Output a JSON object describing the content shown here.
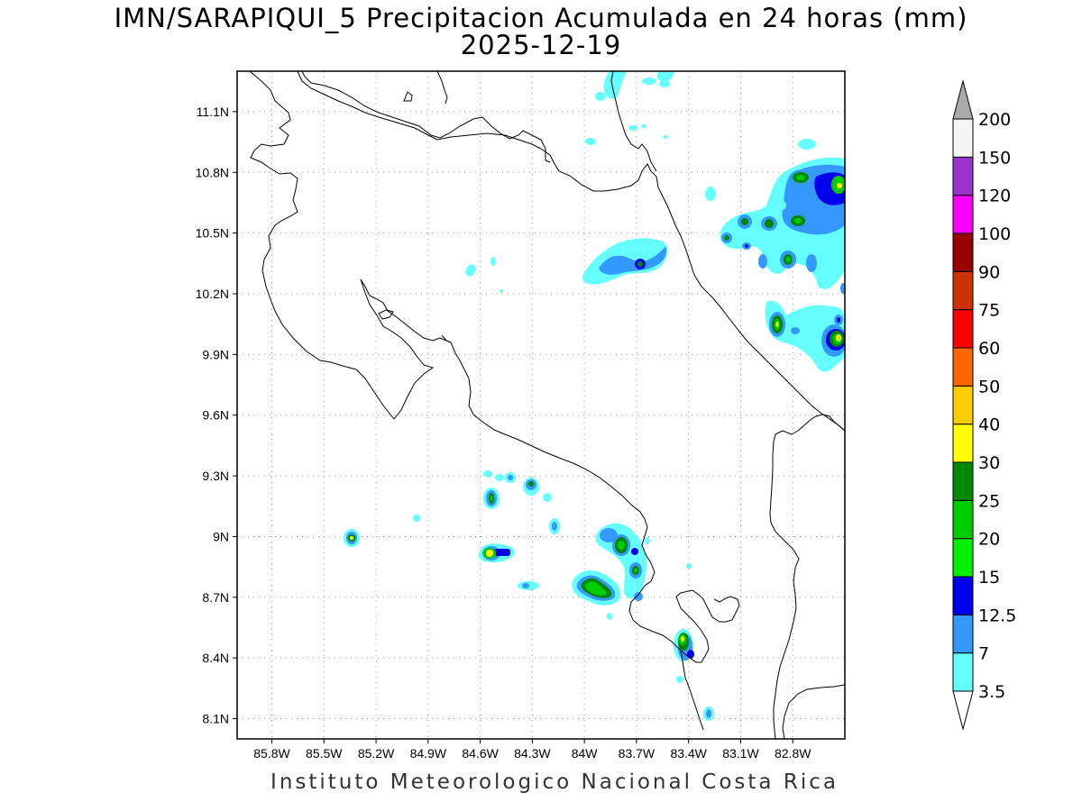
{
  "title": {
    "line1": "IMN/SARAPIQUI_5 Precipitacion Acumulada en 24 horas (mm)",
    "line2": "2025-12-19"
  },
  "footer": "Instituto Meteorologico Nacional Costa Rica",
  "map": {
    "lon_range": [
      -86.0,
      -82.5
    ],
    "lat_range": [
      8.0,
      11.3
    ],
    "lon_ticks": [
      "85.8W",
      "85.5W",
      "85.2W",
      "84.9W",
      "84.6W",
      "84.3W",
      "84W",
      "83.7W",
      "83.4W",
      "83.1W",
      "82.8W"
    ],
    "lat_ticks": [
      "11.1N",
      "10.8N",
      "10.5N",
      "10.2N",
      "9.9N",
      "9.6N",
      "9.3N",
      "9N",
      "8.7N",
      "8.4N",
      "8.1N"
    ],
    "gridlines": "dotted"
  },
  "colorbar": {
    "levels": [
      "3.5",
      "7",
      "12.5",
      "15",
      "20",
      "25",
      "30",
      "40",
      "50",
      "60",
      "75",
      "90",
      "100",
      "120",
      "150",
      "200"
    ],
    "colors": [
      "#66ffff",
      "#3399ff",
      "#0000ee",
      "#00ee00",
      "#00cc00",
      "#008800",
      "#ffff00",
      "#ffcc00",
      "#ff6600",
      "#ff0000",
      "#cc3300",
      "#990000",
      "#ff00ff",
      "#9933cc",
      "#f5f5f5"
    ],
    "over_color": "#aaaaaa",
    "under_color": "#ffffff"
  },
  "colors": {
    "light_cyan": "#66ffff",
    "sky_blue": "#3399ff",
    "blue": "#0000ee",
    "bright_green": "#00ee00",
    "green": "#00cc00",
    "dark_green": "#008800",
    "yellow": "#ffff00",
    "coast": "#000000"
  }
}
